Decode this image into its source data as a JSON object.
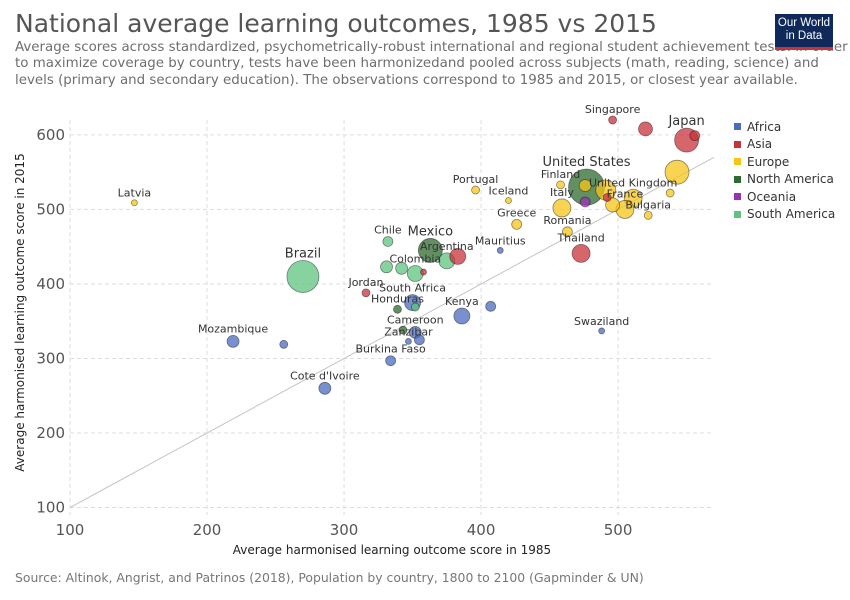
{
  "header": {
    "title": "National average learning outcomes, 1985 vs 2015",
    "subtitle": "Average scores across standardized, psychometrically-robust international and regional student achievement tests. In order to maximize coverage by country, tests have been harmonizedand pooled across subjects (math, reading, science) and levels (primary and secondary education). The observations correspond to 1985 and 2015, or closest year available.",
    "logo_line1": "Our World",
    "logo_line2": "in Data"
  },
  "footer": {
    "source": "Source: Altinok, Angrist, and Patrinos (2018), Population by country, 1800 to 2100 (Gapminder & UN)"
  },
  "colors": {
    "Africa": "#4c6bbf",
    "Asia": "#c8323b",
    "Europe": "#f5c518",
    "North America": "#2e6b2e",
    "Oceania": "#9a2fb8",
    "South America": "#5fc47f"
  },
  "chart_data": {
    "type": "scatter",
    "xlabel": "Average harmonised learning outcome score in 1985",
    "ylabel": "Average harmonised learning outcome score in 2015",
    "xlim": [
      100,
      570
    ],
    "ylim": [
      90,
      620
    ],
    "x_ticks": [
      100,
      200,
      300,
      400,
      500
    ],
    "y_ticks": [
      100,
      200,
      300,
      400,
      500,
      600
    ],
    "grid": true,
    "diagonal_line": true,
    "legend_placement": "right",
    "legend": [
      "Africa",
      "Asia",
      "Europe",
      "North America",
      "Oceania",
      "South America"
    ],
    "points": [
      {
        "label": "Latvia",
        "region": "Europe",
        "x": 147,
        "y": 509,
        "size": 2
      },
      {
        "label": "Brazil",
        "region": "South America",
        "x": 270,
        "y": 410,
        "size": 15
      },
      {
        "label": "Mozambique",
        "region": "Africa",
        "x": 219,
        "y": 323,
        "size": 5
      },
      {
        "label": "",
        "region": "Africa",
        "x": 256,
        "y": 319,
        "size": 3
      },
      {
        "label": "Cote d'Ivoire",
        "region": "Africa",
        "x": 286,
        "y": 260,
        "size": 5
      },
      {
        "label": "Jordan",
        "region": "Asia",
        "x": 316,
        "y": 388,
        "size": 3
      },
      {
        "label": "Chile",
        "region": "South America",
        "x": 332,
        "y": 457,
        "size": 4
      },
      {
        "label": "",
        "region": "South America",
        "x": 331,
        "y": 423,
        "size": 5
      },
      {
        "label": "",
        "region": "South America",
        "x": 342,
        "y": 421,
        "size": 5
      },
      {
        "label": "Colombia",
        "region": "South America",
        "x": 352,
        "y": 414,
        "size": 7
      },
      {
        "label": "Mexico",
        "region": "North America",
        "x": 363,
        "y": 445,
        "size": 11
      },
      {
        "label": "Argentina",
        "region": "South America",
        "x": 375,
        "y": 431,
        "size": 7
      },
      {
        "label": "",
        "region": "Asia",
        "x": 383,
        "y": 437,
        "size": 7
      },
      {
        "label": "",
        "region": "Asia",
        "x": 358,
        "y": 416,
        "size": 2
      },
      {
        "label": "South Africa",
        "region": "Africa",
        "x": 350,
        "y": 375,
        "size": 7
      },
      {
        "label": "Honduras",
        "region": "North America",
        "x": 339,
        "y": 366,
        "size": 3
      },
      {
        "label": "",
        "region": "South America",
        "x": 352,
        "y": 369,
        "size": 3
      },
      {
        "label": "Kenya",
        "region": "Africa",
        "x": 386,
        "y": 357,
        "size": 7
      },
      {
        "label": "",
        "region": "Africa",
        "x": 407,
        "y": 370,
        "size": 4
      },
      {
        "label": "Cameroon",
        "region": "Africa",
        "x": 352,
        "y": 335,
        "size": 5
      },
      {
        "label": "",
        "region": "North America",
        "x": 343,
        "y": 338,
        "size": 3
      },
      {
        "label": "Zanzibar",
        "region": "Africa",
        "x": 347,
        "y": 323,
        "size": 2
      },
      {
        "label": "",
        "region": "Africa",
        "x": 355,
        "y": 325,
        "size": 4
      },
      {
        "label": "Burkina Faso",
        "region": "Africa",
        "x": 334,
        "y": 297,
        "size": 4
      },
      {
        "label": "Portugal",
        "region": "Europe",
        "x": 396,
        "y": 526,
        "size": 3
      },
      {
        "label": "Iceland",
        "region": "Europe",
        "x": 420,
        "y": 512,
        "size": 2
      },
      {
        "label": "Greece",
        "region": "Europe",
        "x": 426,
        "y": 480,
        "size": 4
      },
      {
        "label": "Mauritius",
        "region": "Africa",
        "x": 414,
        "y": 445,
        "size": 2
      },
      {
        "label": "Romania",
        "region": "Europe",
        "x": 463,
        "y": 470,
        "size": 4
      },
      {
        "label": "Thailand",
        "region": "Asia",
        "x": 473,
        "y": 441,
        "size": 8
      },
      {
        "label": "Swaziland",
        "region": "Africa",
        "x": 488,
        "y": 337,
        "size": 2
      },
      {
        "label": "Finland",
        "region": "Europe",
        "x": 458,
        "y": 533,
        "size": 3
      },
      {
        "label": "Italy",
        "region": "Europe",
        "x": 459,
        "y": 502,
        "size": 8
      },
      {
        "label": "",
        "region": "Oceania",
        "x": 476,
        "y": 510,
        "size": 4
      },
      {
        "label": "United States",
        "region": "North America",
        "x": 477,
        "y": 530,
        "size": 17
      },
      {
        "label": "",
        "region": "Europe",
        "x": 491,
        "y": 526,
        "size": 9
      },
      {
        "label": "United Kingdom",
        "region": "Europe",
        "x": 511,
        "y": 515,
        "size": 8
      },
      {
        "label": "France",
        "region": "Europe",
        "x": 505,
        "y": 500,
        "size": 8
      },
      {
        "label": "",
        "region": "Europe",
        "x": 496,
        "y": 506,
        "size": 6
      },
      {
        "label": "",
        "region": "Asia",
        "x": 492,
        "y": 516,
        "size": 3
      },
      {
        "label": "",
        "region": "Europe",
        "x": 476,
        "y": 532,
        "size": 5
      },
      {
        "label": "Bulgaria",
        "region": "Europe",
        "x": 522,
        "y": 492,
        "size": 3
      },
      {
        "label": "Singapore",
        "region": "Asia",
        "x": 496,
        "y": 620,
        "size": 3
      },
      {
        "label": "",
        "region": "Asia",
        "x": 520,
        "y": 608,
        "size": 6
      },
      {
        "label": "Japan",
        "region": "Asia",
        "x": 550,
        "y": 593,
        "size": 11
      },
      {
        "label": "",
        "region": "Asia",
        "x": 556,
        "y": 599,
        "size": 4
      },
      {
        "label": "",
        "region": "Europe",
        "x": 543,
        "y": 550,
        "size": 11
      },
      {
        "label": "",
        "region": "Europe",
        "x": 538,
        "y": 522,
        "size": 3
      }
    ]
  }
}
